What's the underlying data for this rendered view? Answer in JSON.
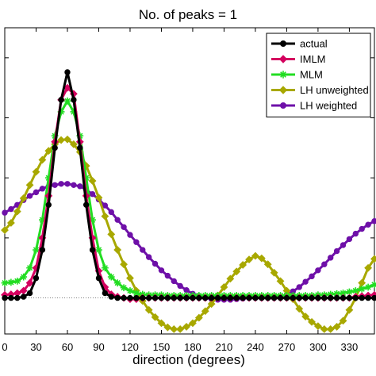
{
  "chart_data": {
    "type": "line",
    "title": "No. of peaks = 1",
    "xlabel": "direction (degrees)",
    "ylabel": "",
    "xlim": [
      0,
      354
    ],
    "ylim": [
      -0.6,
      4.5
    ],
    "xticks": [
      0,
      30,
      60,
      90,
      120,
      150,
      180,
      210,
      240,
      270,
      300,
      330
    ],
    "xtick_labels": [
      "0",
      "30",
      "60",
      "90",
      "120",
      "150",
      "180",
      "210",
      "240",
      "270",
      "300",
      "330"
    ],
    "yticks": [
      0,
      1,
      2,
      3,
      4
    ],
    "ytick_labels": [
      "",
      "",
      "",
      "",
      ""
    ],
    "baseline": 0,
    "legend_position": "top-right",
    "grid": false,
    "x": [
      0,
      6,
      12,
      18,
      24,
      30,
      36,
      42,
      48,
      54,
      60,
      66,
      72,
      78,
      84,
      90,
      96,
      102,
      108,
      114,
      120,
      126,
      132,
      138,
      144,
      150,
      156,
      162,
      168,
      174,
      180,
      186,
      192,
      198,
      204,
      210,
      216,
      222,
      228,
      234,
      240,
      246,
      252,
      258,
      264,
      270,
      276,
      282,
      288,
      294,
      300,
      306,
      312,
      318,
      324,
      330,
      336,
      342,
      348,
      354
    ],
    "series": [
      {
        "name": "actual",
        "color": "#000000",
        "marker": "circle",
        "values": [
          0,
          0,
          0,
          0.02,
          0.08,
          0.33,
          0.8,
          1.55,
          2.5,
          3.3,
          3.76,
          3.3,
          2.5,
          1.55,
          0.8,
          0.33,
          0.08,
          0.02,
          0,
          0,
          0,
          0,
          0,
          0,
          0,
          0,
          0,
          0,
          0,
          0,
          0,
          0,
          0,
          0,
          0,
          0,
          0,
          0,
          0,
          0,
          0,
          0,
          0,
          0,
          0,
          0,
          0,
          0,
          0,
          0,
          0,
          0,
          0,
          0,
          0,
          0,
          0,
          0,
          0,
          0
        ]
      },
      {
        "name": "IMLM",
        "color": "#d4005f",
        "marker": "diamond",
        "values": [
          0.05,
          0.06,
          0.08,
          0.12,
          0.25,
          0.5,
          1.0,
          1.7,
          2.6,
          3.3,
          3.5,
          3.4,
          2.6,
          1.7,
          1.0,
          0.45,
          0.18,
          0.06,
          0.02,
          0.0,
          -0.02,
          -0.02,
          0.0,
          0.0,
          0.0,
          0.0,
          0.0,
          0.0,
          0.0,
          0.0,
          0.0,
          0.0,
          0.0,
          0.0,
          0.0,
          0.0,
          0.0,
          0.0,
          0.0,
          0.0,
          0.0,
          0.0,
          0.0,
          0.0,
          0.0,
          0.0,
          0.0,
          0.0,
          0.0,
          0.0,
          0.0,
          0.0,
          0.0,
          0.0,
          0.0,
          0.0,
          0.02,
          0.03,
          0.04,
          0.05
        ]
      },
      {
        "name": "MLM",
        "color": "#22dd22",
        "marker": "star",
        "values": [
          0.25,
          0.26,
          0.28,
          0.35,
          0.5,
          0.8,
          1.3,
          2.0,
          2.7,
          3.1,
          3.28,
          3.1,
          2.7,
          2.0,
          1.3,
          0.8,
          0.5,
          0.35,
          0.25,
          0.17,
          0.12,
          0.08,
          0.06,
          0.05,
          0.05,
          0.05,
          0.04,
          0.04,
          0.04,
          0.04,
          0.04,
          0.04,
          0.04,
          0.04,
          0.04,
          0.04,
          0.04,
          0.04,
          0.04,
          0.04,
          0.04,
          0.04,
          0.04,
          0.04,
          0.04,
          0.04,
          0.04,
          0.04,
          0.04,
          0.04,
          0.05,
          0.05,
          0.06,
          0.07,
          0.08,
          0.1,
          0.12,
          0.15,
          0.18,
          0.22
        ]
      },
      {
        "name": "LH unweighted",
        "color": "#a8a800",
        "marker": "diamond",
        "values": [
          1.13,
          1.25,
          1.44,
          1.66,
          1.88,
          2.1,
          2.3,
          2.45,
          2.56,
          2.63,
          2.64,
          2.56,
          2.43,
          2.2,
          1.95,
          1.67,
          1.36,
          1.06,
          0.8,
          0.56,
          0.33,
          0.12,
          -0.05,
          -0.2,
          -0.32,
          -0.42,
          -0.49,
          -0.52,
          -0.52,
          -0.48,
          -0.42,
          -0.33,
          -0.22,
          -0.1,
          0.04,
          0.18,
          0.32,
          0.44,
          0.55,
          0.64,
          0.7,
          0.66,
          0.56,
          0.42,
          0.28,
          0.12,
          -0.02,
          -0.18,
          -0.31,
          -0.4,
          -0.47,
          -0.52,
          -0.52,
          -0.48,
          -0.38,
          -0.2,
          0.0,
          0.25,
          0.5,
          0.65
        ]
      },
      {
        "name": "LH weighted",
        "color": "#6e10a8",
        "marker": "circle",
        "values": [
          1.42,
          1.48,
          1.55,
          1.63,
          1.7,
          1.76,
          1.82,
          1.86,
          1.88,
          1.9,
          1.9,
          1.88,
          1.86,
          1.8,
          1.73,
          1.64,
          1.54,
          1.43,
          1.3,
          1.18,
          1.05,
          0.93,
          0.8,
          0.68,
          0.57,
          0.46,
          0.37,
          0.28,
          0.2,
          0.13,
          0.07,
          0.03,
          0.0,
          -0.02,
          -0.03,
          -0.03,
          -0.03,
          -0.02,
          -0.01,
          0.0,
          0.0,
          0.0,
          0.0,
          0.0,
          0.01,
          0.05,
          0.11,
          0.18,
          0.27,
          0.36,
          0.46,
          0.56,
          0.67,
          0.78,
          0.88,
          0.98,
          1.07,
          1.15,
          1.22,
          1.28
        ]
      }
    ]
  }
}
